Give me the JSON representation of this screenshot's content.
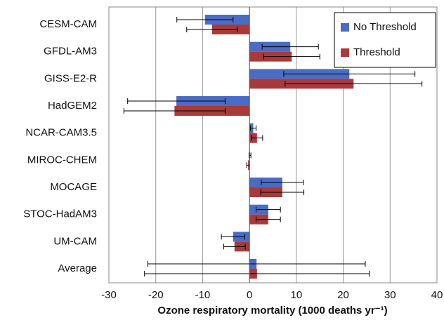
{
  "chart_data": {
    "type": "bar",
    "orientation": "horizontal",
    "x_label": "Ozone respiratory mortality (1000 deaths yr⁻¹)",
    "categories": [
      "CESM-CAM",
      "GFDL-AM3",
      "GISS-E2-R",
      "HadGEM2",
      "NCAR-CAM3.5",
      "MIROC-CHEM",
      "MOCAGE",
      "STOC-HadAM3",
      "UM-CAM",
      "Average"
    ],
    "series": [
      {
        "name": "No Threshold",
        "color": "#4a6cc4",
        "values": [
          -9.5,
          8.7,
          21.3,
          -15.6,
          0.8,
          0.1,
          7,
          4,
          -3.5,
          1.5
        ],
        "errors": [
          6,
          6,
          14,
          10.4,
          0.6,
          0.2,
          4.5,
          2.6,
          2.5,
          23.2
        ]
      },
      {
        "name": "Threshold",
        "color": "#a83a3a",
        "values": [
          -8,
          9,
          22.2,
          -16,
          1.6,
          -0.3,
          7,
          4,
          -3.2,
          1.6
        ],
        "errors": [
          5.4,
          6,
          14.6,
          10.8,
          1.2,
          0.3,
          4.6,
          2.6,
          2.3,
          24
        ]
      }
    ],
    "xlim": [
      -30,
      40
    ],
    "xticks": [
      -30,
      -20,
      -10,
      0,
      10,
      20,
      30,
      40
    ],
    "grid": true,
    "legend": "upper right"
  }
}
